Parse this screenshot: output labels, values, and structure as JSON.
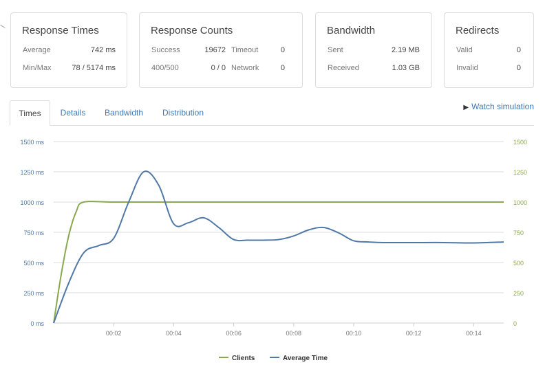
{
  "cards": {
    "response_times": {
      "title": "Response Times",
      "average_label": "Average",
      "average_value": "742 ms",
      "minmax_label": "Min/Max",
      "minmax_value": "78 / 5174 ms"
    },
    "response_counts": {
      "title": "Response Counts",
      "success_label": "Success",
      "success_value": "19672",
      "timeout_label": "Timeout",
      "timeout_value": "0",
      "error_label": "400/500",
      "error_value": "0 / 0",
      "network_label": "Network",
      "network_value": "0"
    },
    "bandwidth": {
      "title": "Bandwidth",
      "sent_label": "Sent",
      "sent_value": "2.19 MB",
      "received_label": "Received",
      "received_value": "1.03 GB"
    },
    "redirects": {
      "title": "Redirects",
      "valid_label": "Valid",
      "valid_value": "0",
      "invalid_label": "Invalid",
      "invalid_value": "0"
    }
  },
  "tabs": [
    "Times",
    "Details",
    "Bandwidth",
    "Distribution"
  ],
  "watch_label": "Watch simulation",
  "colors": {
    "clients": "#8aa84e",
    "average_time": "#4f78a6",
    "link": "#3a78b8"
  },
  "chart_data": {
    "type": "line",
    "x_ticks": [
      "00:02",
      "00:04",
      "00:06",
      "00:08",
      "00:10",
      "00:12",
      "00:14"
    ],
    "xlim": [
      0,
      15
    ],
    "left_axis": {
      "ticks": [
        "0 ms",
        "250 ms",
        "500 ms",
        "750 ms",
        "1000 ms",
        "1250 ms",
        "1500 ms"
      ],
      "ylim": [
        0,
        1500
      ]
    },
    "right_axis": {
      "ticks": [
        "0",
        "250",
        "500",
        "750",
        "1000",
        "1250",
        "1500"
      ],
      "ylim": [
        0,
        1500
      ]
    },
    "series": [
      {
        "name": "Clients",
        "axis": "right",
        "x": [
          0,
          0.25,
          0.5,
          0.75,
          1,
          2,
          4,
          6,
          8,
          10,
          12,
          14,
          15
        ],
        "y": [
          0,
          400,
          720,
          920,
          1000,
          1000,
          1000,
          1000,
          1000,
          1000,
          1000,
          1000,
          1000
        ]
      },
      {
        "name": "Average Time",
        "axis": "left",
        "x": [
          0,
          0.5,
          1,
          1.5,
          2,
          2.5,
          3,
          3.5,
          4,
          4.5,
          5,
          5.5,
          6,
          6.5,
          7,
          7.5,
          8,
          8.5,
          9,
          9.5,
          10,
          10.5,
          11,
          12,
          13,
          14,
          15
        ],
        "y": [
          0,
          330,
          580,
          640,
          700,
          1000,
          1250,
          1140,
          820,
          830,
          870,
          790,
          690,
          685,
          685,
          690,
          720,
          770,
          790,
          745,
          680,
          670,
          665,
          665,
          665,
          662,
          670
        ]
      }
    ],
    "legend_position": "bottom-center",
    "grid": true
  }
}
